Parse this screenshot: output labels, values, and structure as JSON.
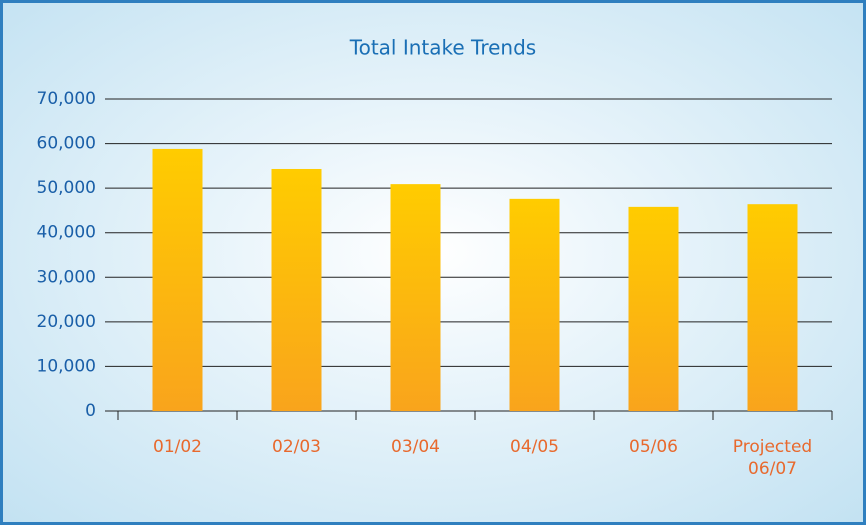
{
  "chart_data": {
    "type": "bar",
    "title": "Total Intake Trends",
    "categories": [
      "01/02",
      "02/03",
      "03/04",
      "04/05",
      "05/06",
      "Projected 06/07"
    ],
    "values": [
      58800,
      54300,
      50900,
      47600,
      45800,
      46400
    ],
    "color": "#fbb814",
    "ylim": [
      0,
      70000
    ],
    "yticks": [
      0,
      {
        "value": 10000,
        "label": "10,000"
      },
      {
        "value": 20000,
        "label": "20,000"
      },
      {
        "value": 30000,
        "label": "30,000"
      },
      {
        "value": 40000,
        "label": "40,000"
      },
      {
        "value": 50000,
        "label": "50,000"
      },
      {
        "value": 60000,
        "label": "60,000"
      },
      {
        "value": 70000,
        "label": "70,000"
      }
    ],
    "grid": true
  }
}
